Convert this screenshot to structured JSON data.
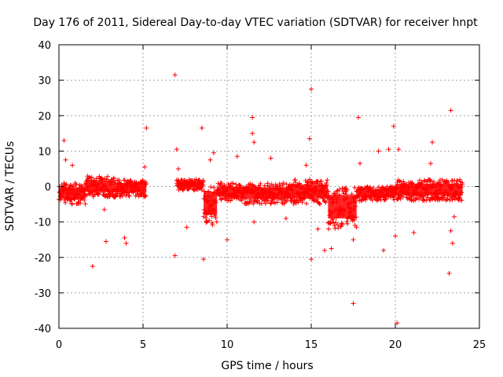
{
  "chart_data": {
    "type": "scatter",
    "title": "Day 176 of 2011, Sidereal Day-to-day VTEC variation (SDTVAR) for receiver hnpt",
    "xlabel": "GPS time / hours",
    "ylabel": "SDTVAR / TECUs",
    "xlim": [
      0,
      25
    ],
    "ylim": [
      -40,
      40
    ],
    "xticks": [
      0,
      5,
      10,
      15,
      20,
      25
    ],
    "yticks": [
      40,
      30,
      20,
      10,
      0,
      -10,
      -20,
      -30,
      -40
    ],
    "grid": true,
    "marker": "+",
    "color": "#ff0000",
    "dense_bands": [
      {
        "x_start": 0.0,
        "x_end": 1.6,
        "y_low": -5,
        "y_high": 1
      },
      {
        "x_start": 1.6,
        "x_end": 3.4,
        "y_low": -3,
        "y_high": 3
      },
      {
        "x_start": 3.4,
        "x_end": 5.2,
        "y_low": -3,
        "y_high": 2
      },
      {
        "x_start": 7.0,
        "x_end": 8.6,
        "y_low": -1,
        "y_high": 2
      },
      {
        "x_start": 8.6,
        "x_end": 9.4,
        "y_low": -11,
        "y_high": 1
      },
      {
        "x_start": 9.4,
        "x_end": 11.0,
        "y_low": -4,
        "y_high": 1
      },
      {
        "x_start": 11.0,
        "x_end": 13.6,
        "y_low": -5,
        "y_high": 1
      },
      {
        "x_start": 13.6,
        "x_end": 16.0,
        "y_low": -5,
        "y_high": 2
      },
      {
        "x_start": 16.0,
        "x_end": 17.7,
        "y_low": -12,
        "y_high": 0
      },
      {
        "x_start": 17.7,
        "x_end": 20.0,
        "y_low": -4,
        "y_high": 0
      },
      {
        "x_start": 20.0,
        "x_end": 24.0,
        "y_low": -4,
        "y_high": 2
      }
    ],
    "outliers": [
      {
        "x": 0.3,
        "y": 13
      },
      {
        "x": 0.4,
        "y": 7.5
      },
      {
        "x": 0.8,
        "y": 6
      },
      {
        "x": 2.0,
        "y": -22.5
      },
      {
        "x": 2.7,
        "y": -6.5
      },
      {
        "x": 2.8,
        "y": -15.5
      },
      {
        "x": 3.9,
        "y": -14.5
      },
      {
        "x": 4.0,
        "y": -16
      },
      {
        "x": 5.2,
        "y": 16.5
      },
      {
        "x": 5.1,
        "y": 5.5
      },
      {
        "x": 6.9,
        "y": 31.5
      },
      {
        "x": 7.0,
        "y": 10.5
      },
      {
        "x": 6.9,
        "y": -19.5
      },
      {
        "x": 7.1,
        "y": 5
      },
      {
        "x": 7.6,
        "y": -11.5
      },
      {
        "x": 8.5,
        "y": 16.5
      },
      {
        "x": 8.6,
        "y": -20.5
      },
      {
        "x": 9.0,
        "y": 7.5
      },
      {
        "x": 9.2,
        "y": 9.5
      },
      {
        "x": 10.0,
        "y": -15
      },
      {
        "x": 10.6,
        "y": 8.5
      },
      {
        "x": 11.5,
        "y": 19.5
      },
      {
        "x": 11.5,
        "y": 15
      },
      {
        "x": 11.6,
        "y": 12.5
      },
      {
        "x": 11.6,
        "y": -10
      },
      {
        "x": 12.6,
        "y": 8
      },
      {
        "x": 13.5,
        "y": -9
      },
      {
        "x": 14.7,
        "y": 6
      },
      {
        "x": 15.0,
        "y": 27.5
      },
      {
        "x": 14.9,
        "y": 13.5
      },
      {
        "x": 15.0,
        "y": -20.5
      },
      {
        "x": 15.4,
        "y": -12
      },
      {
        "x": 15.8,
        "y": -18
      },
      {
        "x": 16.2,
        "y": -17.5
      },
      {
        "x": 17.5,
        "y": -33
      },
      {
        "x": 17.5,
        "y": -15
      },
      {
        "x": 17.8,
        "y": 19.5
      },
      {
        "x": 17.9,
        "y": 6.5
      },
      {
        "x": 19.0,
        "y": 10
      },
      {
        "x": 19.3,
        "y": -18
      },
      {
        "x": 19.6,
        "y": 10.5
      },
      {
        "x": 19.9,
        "y": 17
      },
      {
        "x": 20.1,
        "y": -38.5
      },
      {
        "x": 20.2,
        "y": 10.5
      },
      {
        "x": 20.0,
        "y": -14
      },
      {
        "x": 21.1,
        "y": -13
      },
      {
        "x": 22.2,
        "y": 12.5
      },
      {
        "x": 22.1,
        "y": 6.5
      },
      {
        "x": 23.3,
        "y": 21.5
      },
      {
        "x": 23.2,
        "y": -24.5
      },
      {
        "x": 23.4,
        "y": -16
      },
      {
        "x": 23.3,
        "y": -12.5
      },
      {
        "x": 23.5,
        "y": -8.5
      }
    ]
  }
}
